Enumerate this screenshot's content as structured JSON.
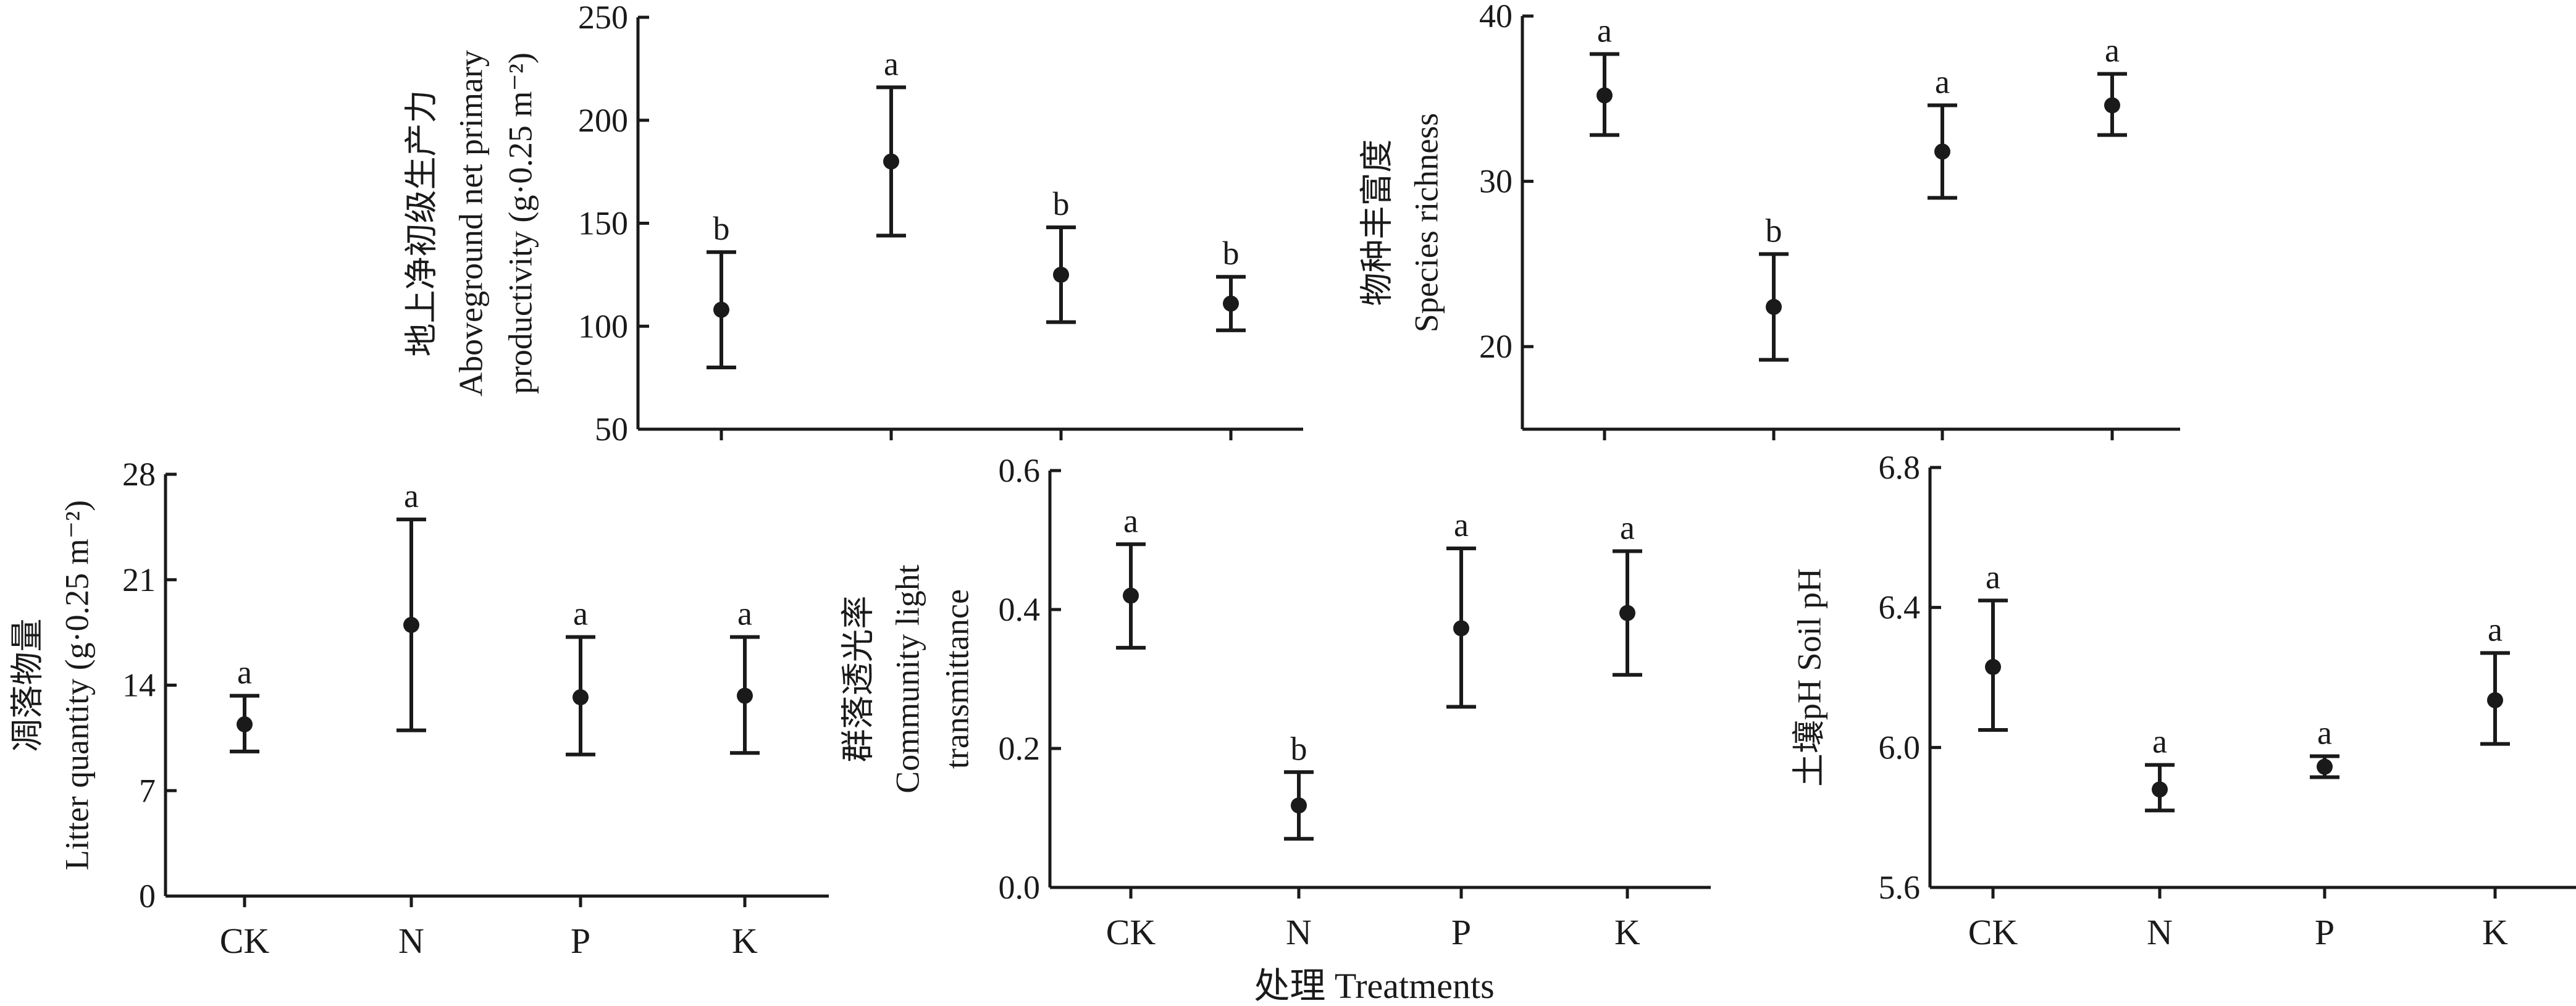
{
  "colors": {
    "ink": "#1a1a1a",
    "background": "#ffffff"
  },
  "x_title": "处理 Treatments",
  "chart_data": [
    {
      "id": "anpp",
      "type": "scatter",
      "ylabel": [
        "地上净初级生产力",
        "Aboveground net primary",
        "productivity (g·0.25 m⁻²)"
      ],
      "ylim": [
        50,
        250
      ],
      "yticks": [
        50,
        100,
        150,
        200,
        250
      ],
      "categories": [
        "CK",
        "N",
        "P",
        "K"
      ],
      "show_categories": false,
      "values": [
        108,
        180,
        125,
        111
      ],
      "err_low": [
        80,
        144,
        102,
        98
      ],
      "err_high": [
        136,
        216,
        148,
        124
      ],
      "letters": [
        "b",
        "a",
        "b",
        "b"
      ]
    },
    {
      "id": "richness",
      "type": "scatter",
      "ylabel": [
        "物种丰富度",
        "Species richness"
      ],
      "ylim": [
        15,
        40
      ],
      "yticks": [
        20,
        30,
        40
      ],
      "categories": [
        "CK",
        "N",
        "P",
        "K"
      ],
      "show_categories": false,
      "values": [
        35.2,
        22.4,
        31.8,
        34.6
      ],
      "err_low": [
        32.8,
        19.2,
        29.0,
        32.8
      ],
      "err_high": [
        37.7,
        25.6,
        34.6,
        36.5
      ],
      "letters": [
        "a",
        "b",
        "a",
        "a"
      ]
    },
    {
      "id": "litter",
      "type": "scatter",
      "ylabel": [
        "凋落物量",
        "Litter quantity (g·0.25 m⁻²)"
      ],
      "ylim": [
        0,
        28
      ],
      "yticks": [
        0,
        7,
        14,
        21,
        28
      ],
      "categories": [
        "CK",
        "N",
        "P",
        "K"
      ],
      "show_categories": true,
      "values": [
        11.4,
        18.0,
        13.2,
        13.3
      ],
      "err_low": [
        9.6,
        11.0,
        9.4,
        9.5
      ],
      "err_high": [
        13.3,
        25.0,
        17.2,
        17.2
      ],
      "letters": [
        "a",
        "a",
        "a",
        "a"
      ]
    },
    {
      "id": "light",
      "type": "scatter",
      "ylabel": [
        "群落透光率",
        "Community light",
        "transmittance"
      ],
      "ylim": [
        0,
        0.6
      ],
      "yticks": [
        0,
        0.2,
        0.4,
        0.6
      ],
      "tick_format": "0.0",
      "categories": [
        "CK",
        "N",
        "P",
        "K"
      ],
      "show_categories": true,
      "values": [
        0.42,
        0.118,
        0.373,
        0.395
      ],
      "err_low": [
        0.345,
        0.07,
        0.26,
        0.306
      ],
      "err_high": [
        0.494,
        0.166,
        0.488,
        0.484
      ],
      "letters": [
        "a",
        "b",
        "a",
        "a"
      ]
    },
    {
      "id": "ph",
      "type": "scatter",
      "ylabel": [
        "土壤pH Soil pH"
      ],
      "ylim": [
        5.6,
        6.8
      ],
      "yticks": [
        5.6,
        6.0,
        6.4,
        6.8
      ],
      "tick_format": "0.0",
      "categories": [
        "CK",
        "N",
        "P",
        "K"
      ],
      "show_categories": true,
      "values": [
        6.23,
        5.88,
        5.945,
        6.135
      ],
      "err_low": [
        6.05,
        5.82,
        5.915,
        6.01
      ],
      "err_high": [
        6.42,
        5.95,
        5.975,
        6.27
      ],
      "letters": [
        "a",
        "a",
        "a",
        "a"
      ]
    }
  ]
}
